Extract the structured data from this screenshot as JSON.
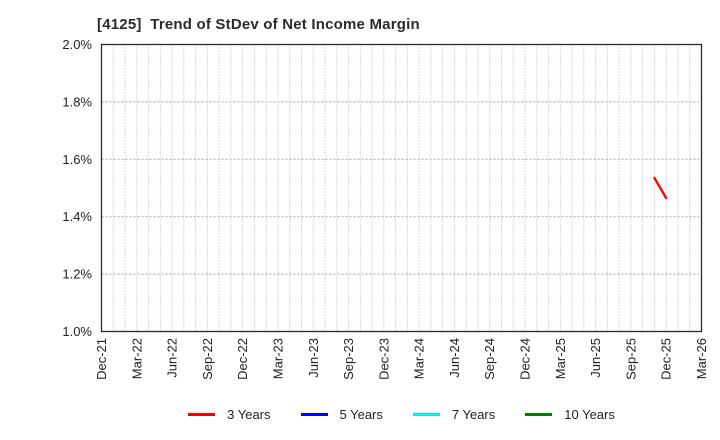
{
  "header": {
    "title": "[4125]  Trend of StDev of Net Income Margin"
  },
  "colors": {
    "frame": "#2b2b2b",
    "grid_vertical": "#b0b0b0",
    "grid_horizontal": "#a6a6a6",
    "tick_label": "#222222",
    "background": "#ffffff",
    "series_3y": "#ff0000",
    "series_5y": "#0000ff",
    "series_7y": "#00eeee",
    "series_10y": "#008000"
  },
  "chart_data": {
    "type": "line",
    "title": "[4125]  Trend of StDev of Net Income Margin",
    "xlabel": "",
    "ylabel": "",
    "ylim": [
      1.0,
      2.0
    ],
    "y_ticks": [
      {
        "value": 2.0,
        "label": "2.0%"
      },
      {
        "value": 1.8,
        "label": "1.8%"
      },
      {
        "value": 1.6,
        "label": "1.6%"
      },
      {
        "value": 1.4,
        "label": "1.4%"
      },
      {
        "value": 1.2,
        "label": "1.2%"
      },
      {
        "value": 1.0,
        "label": "1.0%"
      }
    ],
    "x_ticks": [
      "Dec-21",
      "Mar-22",
      "Jun-22",
      "Sep-22",
      "Dec-22",
      "Mar-23",
      "Jun-23",
      "Sep-23",
      "Dec-23",
      "Mar-24",
      "Jun-24",
      "Sep-24",
      "Dec-24",
      "Mar-25",
      "Jun-25",
      "Sep-25",
      "Dec-25",
      "Mar-26"
    ],
    "x_tick_interval_months": 3,
    "x_total_months": 51,
    "grid": {
      "vertical": "monthly dotted",
      "horizontal": "dashed at y ticks"
    },
    "legend_position": "bottom center",
    "series": [
      {
        "name": "3 Years",
        "color": "#ff0000",
        "points": [
          {
            "x": "Nov-25",
            "x_month": 47,
            "y": 1.535
          },
          {
            "x": "Dec-25",
            "x_month": 48,
            "y": 1.465
          }
        ]
      },
      {
        "name": "5 Years",
        "color": "#0000ff",
        "points": []
      },
      {
        "name": "7 Years",
        "color": "#00eeee",
        "points": []
      },
      {
        "name": "10 Years",
        "color": "#008000",
        "points": []
      }
    ]
  }
}
